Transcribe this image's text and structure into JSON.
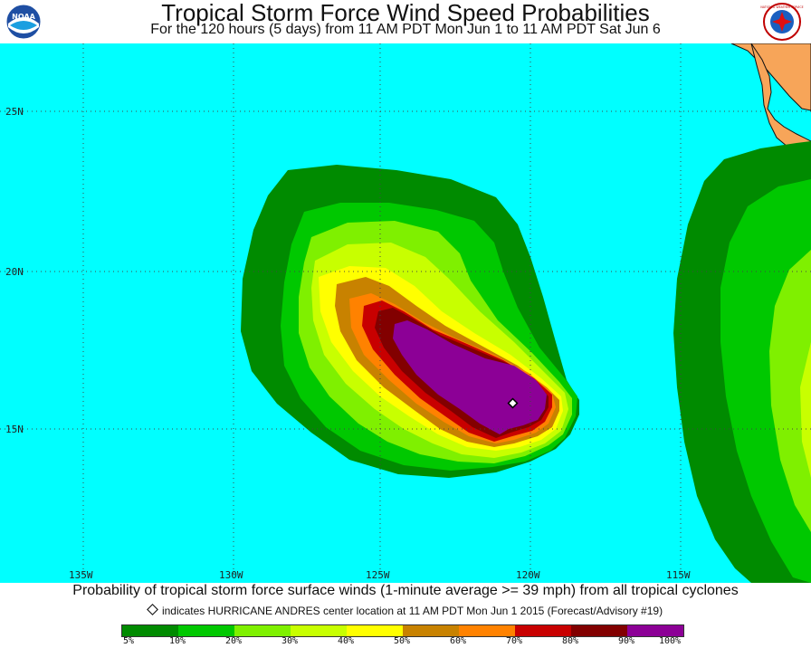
{
  "header": {
    "title": "Tropical Storm Force Wind Speed Probabilities",
    "subtitle": "For the 120 hours (5 days) from 11 AM PDT Mon Jun 1 to 11 AM PDT Sat Jun 6",
    "left_logo_text": "NOAA",
    "right_logo_text": "NATIONAL WEATHER SERVICE"
  },
  "map": {
    "ocean_color": "#00ffff",
    "land_color": "#f7a559",
    "lat_labels": [
      "25N",
      "20N",
      "15N"
    ],
    "lon_labels": [
      "135W",
      "130W",
      "125W",
      "120W",
      "115W"
    ],
    "center_marker": {
      "name": "HURRICANE ANDRES",
      "lon": -119.9,
      "lat": 15.8
    }
  },
  "caption": "Probability of tropical storm force surface winds (1-minute average >= 39 mph) from all tropical cyclones",
  "note": "indicates HURRICANE ANDRES center location at 11 AM PDT Mon Jun 1 2015 (Forecast/Advisory #19)",
  "legend": {
    "colors": [
      "#008b00",
      "#00c800",
      "#7ff000",
      "#c8ff00",
      "#ffff00",
      "#c88200",
      "#ff8200",
      "#c80000",
      "#820000",
      "#8c0096"
    ],
    "labels": [
      "5%",
      "10%",
      "20%",
      "30%",
      "40%",
      "50%",
      "60%",
      "70%",
      "80%",
      "90%",
      "100%"
    ]
  }
}
